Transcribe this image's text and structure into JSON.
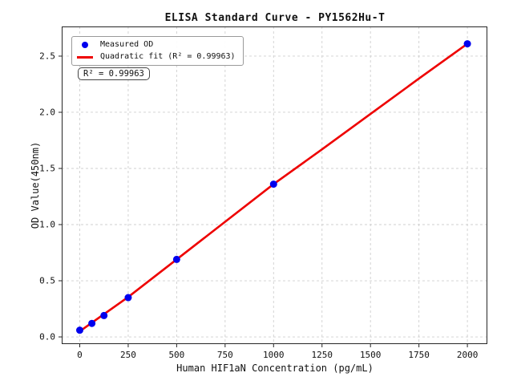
{
  "chart_data": {
    "type": "scatter",
    "title": "ELISA Standard Curve - PY1562Hu-T",
    "xlabel": "Human HIF1aN Concentration (pg/mL)",
    "ylabel": "OD Value(450nm)",
    "annotation": "R² = 0.99963",
    "r_squared": 0.99963,
    "xlim": [
      -93,
      2103
    ],
    "ylim": [
      -0.064,
      2.764
    ],
    "x_ticks": [
      0,
      250,
      500,
      750,
      1000,
      1250,
      1500,
      1750,
      2000
    ],
    "x_tick_labels": [
      "0",
      "250",
      "500",
      "750",
      "1000",
      "1250",
      "1500",
      "1750",
      "2000"
    ],
    "y_ticks": [
      0.0,
      0.5,
      1.0,
      1.5,
      2.0,
      2.5
    ],
    "y_tick_labels": [
      "0.0",
      "0.5",
      "1.0",
      "1.5",
      "2.0",
      "2.5"
    ],
    "grid": true,
    "legend_position": "upper left",
    "series": [
      {
        "name": "Measured OD",
        "type": "scatter",
        "color": "#0000ee",
        "x": [
          0,
          62.5,
          125,
          250,
          500,
          1000,
          2000
        ],
        "y": [
          0.06,
          0.12,
          0.19,
          0.35,
          0.69,
          1.36,
          2.61
        ]
      },
      {
        "name": "Quadratic fit (R² = 0.99963)",
        "type": "line",
        "color": "#ee0000",
        "points": [
          [
            0,
            0.05
          ],
          [
            250,
            0.355
          ],
          [
            500,
            0.69
          ],
          [
            750,
            1.025
          ],
          [
            1000,
            1.36
          ],
          [
            1250,
            1.67
          ],
          [
            1500,
            1.985
          ],
          [
            1750,
            2.3
          ],
          [
            2000,
            2.61
          ]
        ]
      }
    ],
    "styles": {
      "grid_color": "#cfcfcf",
      "spine_color": "#262626",
      "tick_color": "#262626",
      "background": "#ffffff"
    }
  }
}
